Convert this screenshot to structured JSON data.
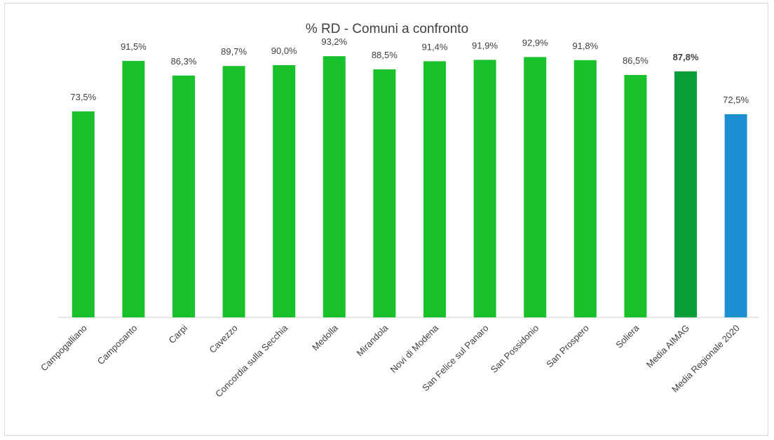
{
  "chart_data": {
    "type": "bar",
    "title": "% RD - Comuni a confronto",
    "xlabel": "",
    "ylabel": "",
    "ylim": [
      0,
      100
    ],
    "grid": false,
    "categories": [
      "Campogalliano",
      "Camposanto",
      "Carpi",
      "Cavezzo",
      "Concordia sulla Secchia",
      "Medolla",
      "Mirandola",
      "Novi di Modena",
      "San Felice sul Panaro",
      "San Possidonio",
      "San Prospero",
      "Soliera",
      "Media AIMAG",
      "Media Regionale 2020"
    ],
    "values": [
      73.5,
      91.5,
      86.3,
      89.7,
      90.0,
      93.2,
      88.5,
      91.4,
      91.9,
      92.9,
      91.8,
      86.5,
      87.8,
      72.5
    ],
    "data_labels": [
      "73,5%",
      "91,5%",
      "86,3%",
      "89,7%",
      "90,0%",
      "93,2%",
      "88,5%",
      "91,4%",
      "91,9%",
      "92,9%",
      "91,8%",
      "86,5%",
      "87,8%",
      "72,5%"
    ],
    "colors": [
      "#19c12b",
      "#19c12b",
      "#19c12b",
      "#19c12b",
      "#19c12b",
      "#19c12b",
      "#19c12b",
      "#19c12b",
      "#19c12b",
      "#19c12b",
      "#19c12b",
      "#19c12b",
      "#0d9e3c",
      "#1e90d2"
    ]
  }
}
